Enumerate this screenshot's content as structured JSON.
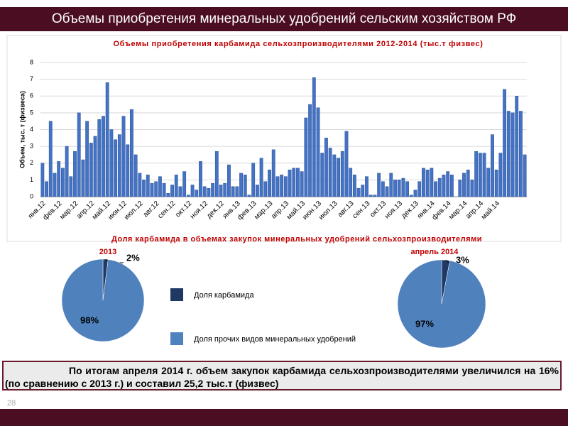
{
  "header": {
    "title": "Объемы приобретения минеральных удобрений сельским хозяйством РФ"
  },
  "chart_data": [
    {
      "type": "bar",
      "title": "Объемы приобретения карбамида сельхозпроизводителями 2012-2014  (тыс.т физвес)",
      "y_label": "Объем, тыс. т (физвеса)",
      "color": "#4472c4",
      "ylim": [
        0,
        8
      ],
      "yticks": [
        0,
        1,
        2,
        3,
        4,
        5,
        6,
        7,
        8
      ],
      "grid": true,
      "categories": [
        "янв.12",
        null,
        null,
        null,
        "фев.12",
        null,
        null,
        null,
        "мар.12",
        null,
        null,
        null,
        "апр.12",
        null,
        null,
        null,
        "май.12",
        null,
        null,
        null,
        "июн.12",
        null,
        null,
        null,
        "июл.12",
        null,
        null,
        null,
        "авг.12",
        null,
        null,
        null,
        "сен.12",
        null,
        null,
        null,
        "окт.12",
        null,
        null,
        null,
        "ноя.12",
        null,
        null,
        null,
        "дек.12",
        null,
        null,
        null,
        "янв.13",
        null,
        null,
        null,
        "фев.13",
        null,
        null,
        null,
        "мар.13",
        null,
        null,
        null,
        "апр.13",
        null,
        null,
        null,
        "май.13",
        null,
        null,
        null,
        "июн.13",
        null,
        null,
        null,
        "июл.13",
        null,
        null,
        null,
        "авг.13",
        null,
        null,
        null,
        "сен.13",
        null,
        null,
        null,
        "окт.13",
        null,
        null,
        null,
        "ноя.13",
        null,
        null,
        null,
        "дек.13",
        null,
        null,
        null,
        "янв.14",
        null,
        null,
        null,
        "фев.14",
        null,
        null,
        null,
        "мар.14",
        null,
        null,
        null,
        "апр.14",
        null,
        null,
        null,
        "май.14",
        null,
        null,
        null,
        null,
        null,
        null,
        null
      ],
      "values": [
        2.0,
        0.9,
        4.5,
        1.4,
        2.1,
        1.7,
        3.0,
        1.2,
        2.7,
        5.0,
        2.2,
        4.5,
        3.2,
        3.6,
        4.6,
        4.8,
        6.8,
        4.0,
        3.4,
        3.7,
        4.8,
        3.1,
        5.2,
        2.5,
        1.4,
        1.0,
        1.3,
        0.8,
        0.9,
        1.2,
        0.8,
        0.2,
        0.7,
        1.3,
        0.6,
        1.5,
        0.1,
        0.7,
        0.4,
        2.1,
        0.6,
        0.5,
        0.8,
        2.7,
        0.7,
        0.8,
        1.9,
        0.6,
        0.6,
        1.4,
        1.3,
        0.1,
        2.0,
        0.7,
        2.3,
        0.9,
        1.6,
        2.8,
        1.2,
        1.3,
        1.2,
        1.6,
        1.7,
        1.7,
        1.5,
        4.7,
        5.5,
        7.1,
        5.3,
        2.6,
        3.5,
        2.9,
        2.5,
        2.3,
        2.7,
        3.9,
        1.7,
        1.3,
        0.5,
        0.7,
        1.2,
        0.1,
        0.1,
        1.4,
        0.9,
        0.6,
        1.4,
        1.0,
        1.0,
        1.1,
        0.9,
        0.1,
        0.4,
        0.9,
        1.7,
        1.6,
        1.7,
        0.9,
        1.1,
        1.3,
        1.5,
        1.3,
        0.0,
        1.0,
        1.4,
        1.6,
        1.0,
        2.7,
        2.6,
        2.6,
        1.7,
        3.7,
        1.6,
        2.6,
        6.4,
        5.1,
        5.0,
        6.0,
        5.1,
        2.5
      ]
    },
    {
      "type": "pie",
      "title": "2013",
      "values": [
        2,
        98
      ],
      "value_labels": [
        "2%",
        "98%"
      ],
      "colors": [
        "#1f3864",
        "#4f81bd"
      ]
    },
    {
      "type": "pie",
      "title": "апрель 2014",
      "values": [
        3,
        97
      ],
      "value_labels": [
        "3%",
        "97%"
      ],
      "colors": [
        "#1f3864",
        "#4f81bd"
      ]
    }
  ],
  "pies_title": "Доля  карбамида в объемах закупок минеральных удобрений  сельхозпроизводителями",
  "legend": {
    "labels": [
      "Доля карбамида",
      "Доля прочих видов минеральных удобрений"
    ],
    "colors": [
      "#1f3864",
      "#4f81bd"
    ]
  },
  "note": "По итогам апреля 2014 г. объем закупок карбамида сельхозпроизводителями увеличился на 16% (по сравнению с 2013 г.) и составил 25,2 тыс.т (физвес)",
  "page_number": "28"
}
